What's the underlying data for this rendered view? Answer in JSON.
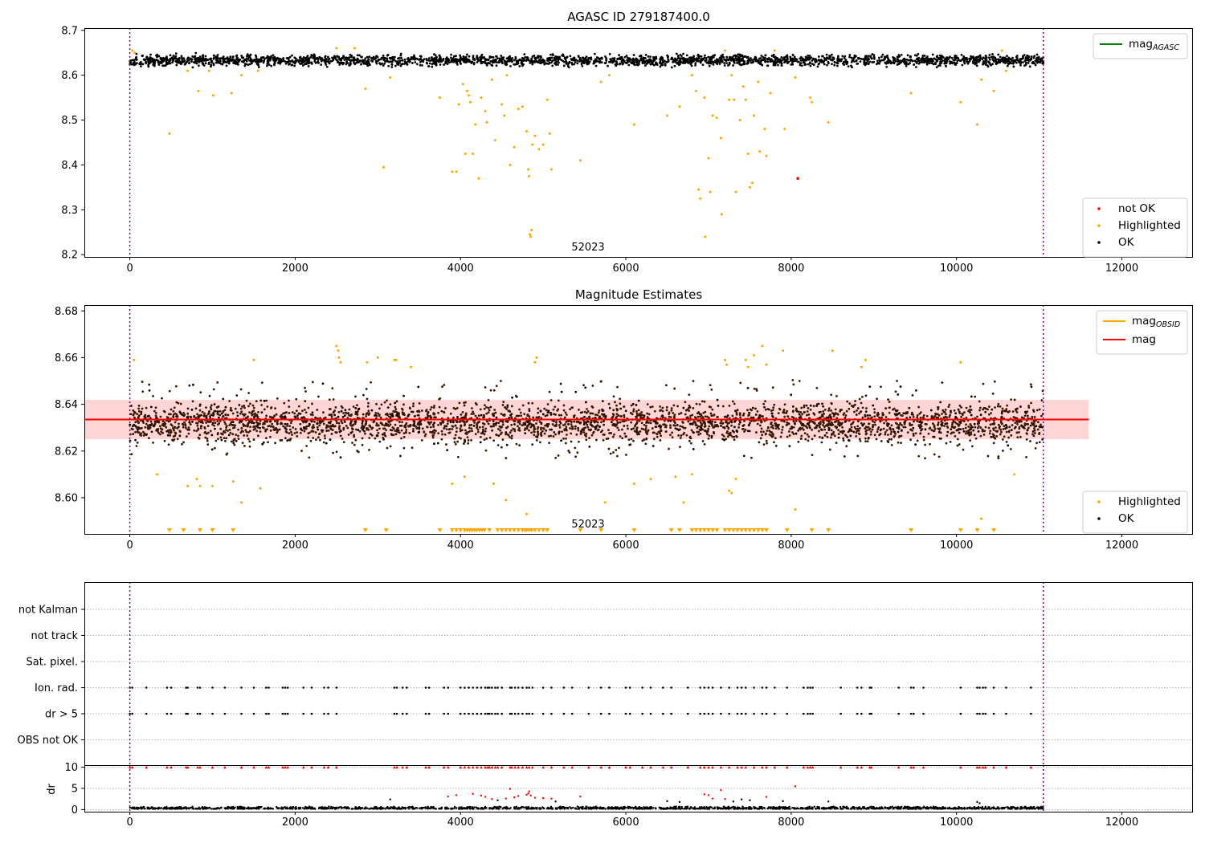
{
  "figure": {
    "source_label": "52023"
  },
  "chart_data": [
    {
      "id": "top",
      "type": "scatter",
      "title": "AGASC ID 279187400.0",
      "xlim": [
        -550,
        12850
      ],
      "ylim": [
        8.195,
        8.705
      ],
      "xticks": [
        0,
        2000,
        4000,
        6000,
        8000,
        10000,
        12000
      ],
      "yticks": [
        8.2,
        8.3,
        8.4,
        8.5,
        8.6,
        8.7
      ],
      "ytick_labels": [
        "8.2",
        "8.3",
        "8.4",
        "8.5",
        "8.6",
        "8.7"
      ],
      "vlines": [
        0,
        11050
      ],
      "annotation": "52023",
      "legend_upper": [
        {
          "label": "mag",
          "sub": "AGASC",
          "color": "#008000"
        }
      ],
      "legend_lower": [
        {
          "label": "not OK",
          "color": "#ff0000"
        },
        {
          "label": "Highlighted",
          "color": "#ffa500"
        },
        {
          "label": "OK",
          "color": "#000000"
        }
      ],
      "band": {
        "center": 8.633,
        "half_width": 0.012,
        "color": "#000000"
      },
      "not_ok_points": [
        [
          8080,
          8.37
        ]
      ],
      "highlighted_points": [
        [
          30,
          8.655
        ],
        [
          60,
          8.65
        ],
        [
          480,
          8.47
        ],
        [
          700,
          8.61
        ],
        [
          830,
          8.565
        ],
        [
          960,
          8.61
        ],
        [
          1010,
          8.555
        ],
        [
          1230,
          8.56
        ],
        [
          1350,
          8.6
        ],
        [
          1550,
          8.61
        ],
        [
          2500,
          8.66
        ],
        [
          2720,
          8.66
        ],
        [
          2850,
          8.57
        ],
        [
          3070,
          8.395
        ],
        [
          3150,
          8.595
        ],
        [
          3750,
          8.55
        ],
        [
          3900,
          8.385
        ],
        [
          3950,
          8.385
        ],
        [
          3980,
          8.535
        ],
        [
          4030,
          8.58
        ],
        [
          4060,
          8.425
        ],
        [
          4080,
          8.565
        ],
        [
          4100,
          8.555
        ],
        [
          4120,
          8.54
        ],
        [
          4150,
          8.425
        ],
        [
          4180,
          8.49
        ],
        [
          4220,
          8.37
        ],
        [
          4250,
          8.55
        ],
        [
          4300,
          8.52
        ],
        [
          4320,
          8.495
        ],
        [
          4380,
          8.59
        ],
        [
          4420,
          8.455
        ],
        [
          4500,
          8.535
        ],
        [
          4530,
          8.51
        ],
        [
          4560,
          8.6
        ],
        [
          4600,
          8.4
        ],
        [
          4650,
          8.44
        ],
        [
          4700,
          8.525
        ],
        [
          4750,
          8.53
        ],
        [
          4800,
          8.475
        ],
        [
          4820,
          8.39
        ],
        [
          4830,
          8.375
        ],
        [
          4840,
          8.245
        ],
        [
          4850,
          8.24
        ],
        [
          4860,
          8.255
        ],
        [
          4870,
          8.445
        ],
        [
          4900,
          8.465
        ],
        [
          4950,
          8.435
        ],
        [
          5000,
          8.445
        ],
        [
          5050,
          8.545
        ],
        [
          5080,
          8.47
        ],
        [
          5100,
          8.39
        ],
        [
          5450,
          8.41
        ],
        [
          5700,
          8.585
        ],
        [
          5800,
          8.6
        ],
        [
          6100,
          8.49
        ],
        [
          6500,
          8.51
        ],
        [
          6650,
          8.53
        ],
        [
          6800,
          8.6
        ],
        [
          6850,
          8.565
        ],
        [
          6880,
          8.345
        ],
        [
          6900,
          8.325
        ],
        [
          6950,
          8.55
        ],
        [
          6960,
          8.24
        ],
        [
          7000,
          8.415
        ],
        [
          7020,
          8.34
        ],
        [
          7050,
          8.51
        ],
        [
          7100,
          8.505
        ],
        [
          7150,
          8.46
        ],
        [
          7160,
          8.29
        ],
        [
          7200,
          8.655
        ],
        [
          7250,
          8.545
        ],
        [
          7280,
          8.6
        ],
        [
          7310,
          8.545
        ],
        [
          7330,
          8.34
        ],
        [
          7380,
          8.5
        ],
        [
          7420,
          8.575
        ],
        [
          7450,
          8.545
        ],
        [
          7480,
          8.425
        ],
        [
          7500,
          8.35
        ],
        [
          7530,
          8.36
        ],
        [
          7550,
          8.51
        ],
        [
          7600,
          8.585
        ],
        [
          7620,
          8.43
        ],
        [
          7680,
          8.48
        ],
        [
          7700,
          8.42
        ],
        [
          7750,
          8.56
        ],
        [
          7800,
          8.655
        ],
        [
          7920,
          8.48
        ],
        [
          8050,
          8.595
        ],
        [
          8230,
          8.55
        ],
        [
          8250,
          8.54
        ],
        [
          8450,
          8.495
        ],
        [
          9450,
          8.56
        ],
        [
          10050,
          8.54
        ],
        [
          10250,
          8.49
        ],
        [
          10300,
          8.59
        ],
        [
          10450,
          8.565
        ],
        [
          10550,
          8.655
        ],
        [
          10600,
          8.61
        ]
      ]
    },
    {
      "id": "middle",
      "type": "scatter",
      "title": "Magnitude Estimates",
      "xlim": [
        -550,
        12850
      ],
      "ylim": [
        8.5845,
        8.6825
      ],
      "xticks": [
        0,
        2000,
        4000,
        6000,
        8000,
        10000,
        12000
      ],
      "yticks": [
        8.6,
        8.62,
        8.64,
        8.66,
        8.68
      ],
      "ytick_labels": [
        "8.60",
        "8.62",
        "8.64",
        "8.66",
        "8.68"
      ],
      "vlines": [
        0,
        11050
      ],
      "annotation": "52023",
      "legend_upper": [
        {
          "label": "mag",
          "sub": "OBSID",
          "color": "#ffa500"
        },
        {
          "label": "mag",
          "sub": "",
          "color": "#ff0000"
        }
      ],
      "legend_lower": [
        {
          "label": "Highlighted",
          "color": "#ffa500"
        },
        {
          "label": "OK",
          "color": "#000000"
        }
      ],
      "mean_line": 8.6335,
      "shade": [
        8.6251,
        8.6419
      ],
      "shade_x": [
        -550,
        11600
      ],
      "band": {
        "center": 8.632,
        "half_width": 0.008,
        "color": "#3a1800"
      },
      "highlighted_points": [
        [
          50,
          8.659
        ],
        [
          330,
          8.61
        ],
        [
          700,
          8.605
        ],
        [
          810,
          8.608
        ],
        [
          850,
          8.605
        ],
        [
          1000,
          8.605
        ],
        [
          1250,
          8.607
        ],
        [
          1350,
          8.598
        ],
        [
          1500,
          8.659
        ],
        [
          1580,
          8.604
        ],
        [
          2500,
          8.665
        ],
        [
          2520,
          8.663
        ],
        [
          2530,
          8.66
        ],
        [
          2550,
          8.658
        ],
        [
          2870,
          8.658
        ],
        [
          3000,
          8.66
        ],
        [
          3200,
          8.659
        ],
        [
          3220,
          8.659
        ],
        [
          3400,
          8.656
        ],
        [
          3900,
          8.606
        ],
        [
          4050,
          8.609
        ],
        [
          4400,
          8.606
        ],
        [
          4550,
          8.599
        ],
        [
          4800,
          8.593
        ],
        [
          4900,
          8.658
        ],
        [
          4920,
          8.66
        ],
        [
          5750,
          8.598
        ],
        [
          6100,
          8.606
        ],
        [
          6300,
          8.608
        ],
        [
          6600,
          8.609
        ],
        [
          6700,
          8.598
        ],
        [
          6800,
          8.61
        ],
        [
          7200,
          8.659
        ],
        [
          7220,
          8.657
        ],
        [
          7250,
          8.603
        ],
        [
          7280,
          8.602
        ],
        [
          7330,
          8.608
        ],
        [
          7450,
          8.659
        ],
        [
          7480,
          8.656
        ],
        [
          7550,
          8.661
        ],
        [
          7650,
          8.665
        ],
        [
          7700,
          8.657
        ],
        [
          7900,
          8.663
        ],
        [
          8050,
          8.595
        ],
        [
          8500,
          8.663
        ],
        [
          8850,
          8.656
        ],
        [
          8900,
          8.659
        ],
        [
          10050,
          8.658
        ],
        [
          10300,
          8.591
        ],
        [
          10700,
          8.61
        ]
      ],
      "below_markers": [
        480,
        650,
        850,
        1000,
        1250,
        2850,
        3100,
        3750,
        3900,
        3950,
        4000,
        4050,
        4080,
        4110,
        4140,
        4170,
        4200,
        4230,
        4260,
        4290,
        4350,
        4450,
        4500,
        4550,
        4600,
        4650,
        4700,
        4750,
        4780,
        4800,
        4830,
        4860,
        4900,
        4950,
        5000,
        5050,
        5450,
        5700,
        6100,
        6550,
        6650,
        6800,
        6850,
        6900,
        6950,
        7000,
        7050,
        7100,
        7200,
        7250,
        7300,
        7350,
        7400,
        7450,
        7500,
        7550,
        7600,
        7650,
        7700,
        7950,
        8250,
        8450,
        9450,
        10050,
        10250,
        10450
      ]
    },
    {
      "id": "flags",
      "type": "scatter",
      "xlim": [
        -550,
        12850
      ],
      "categories": [
        "not Kalman",
        "not track",
        "Sat. pixel.",
        "Ion. rad.",
        "dr > 5",
        "OBS not OK"
      ],
      "vlines": [
        0,
        11050
      ],
      "flag_points": {
        "Ion. rad.": [
          0,
          30,
          200,
          450,
          500,
          680,
          700,
          820,
          850,
          1000,
          1150,
          1350,
          1500,
          1650,
          1680,
          1850,
          1880,
          1910,
          2100,
          2200,
          2350,
          2400,
          2500,
          3200,
          3230,
          3300,
          3350,
          3580,
          3620,
          3800,
          3850,
          4000,
          4050,
          4100,
          4150,
          4200,
          4250,
          4300,
          4330,
          4350,
          4380,
          4420,
          4450,
          4500,
          4600,
          4620,
          4660,
          4700,
          4750,
          4800,
          4830,
          4870,
          5000,
          5100,
          5250,
          5350,
          5550,
          5700,
          5800,
          6000,
          6050,
          6200,
          6300,
          6450,
          6550,
          6750,
          6900,
          6950,
          7000,
          7050,
          7150,
          7250,
          7350,
          7400,
          7450,
          7550,
          7650,
          7700,
          7800,
          7950,
          8150,
          8200,
          8230,
          8260,
          8600,
          8800,
          8850,
          8950,
          8970,
          9300,
          9450,
          9480,
          9600,
          10050,
          10250,
          10280,
          10320,
          10350,
          10450,
          10600,
          10900
        ],
        "dr > 5": [
          0,
          30,
          200,
          450,
          500,
          680,
          700,
          820,
          850,
          1000,
          1150,
          1350,
          1500,
          1650,
          1680,
          1850,
          1880,
          1910,
          2100,
          2200,
          2350,
          2400,
          2500,
          3200,
          3230,
          3300,
          3350,
          3580,
          3620,
          3800,
          3850,
          4000,
          4050,
          4100,
          4150,
          4200,
          4250,
          4300,
          4330,
          4350,
          4380,
          4420,
          4450,
          4500,
          4600,
          4620,
          4660,
          4700,
          4750,
          4800,
          4830,
          4870,
          5000,
          5100,
          5250,
          5350,
          5550,
          5700,
          5800,
          6000,
          6050,
          6200,
          6300,
          6450,
          6550,
          6750,
          6900,
          6950,
          7000,
          7050,
          7150,
          7250,
          7350,
          7400,
          7450,
          7550,
          7650,
          7700,
          7800,
          7950,
          8150,
          8200,
          8230,
          8260,
          8600,
          8800,
          8850,
          8950,
          8970,
          9300,
          9450,
          9480,
          9600,
          10050,
          10250,
          10280,
          10320,
          10350,
          10450,
          10600,
          10900
        ]
      }
    },
    {
      "id": "dr",
      "type": "scatter",
      "ylabel": "dr",
      "xlim": [
        -550,
        12850
      ],
      "ylim": [
        -0.5,
        10.5
      ],
      "xticks": [
        0,
        2000,
        4000,
        6000,
        8000,
        10000,
        12000
      ],
      "yticks": [
        0,
        5,
        10
      ],
      "ytick_labels": [
        "0",
        "5",
        "10"
      ],
      "vlines": [
        0,
        11050
      ],
      "clip_value": 10,
      "clip_markers": [
        0,
        30,
        200,
        450,
        500,
        680,
        700,
        820,
        850,
        1000,
        1150,
        1350,
        1500,
        1650,
        1680,
        1850,
        1880,
        1910,
        2100,
        2200,
        2350,
        2400,
        2500,
        3200,
        3230,
        3300,
        3350,
        3580,
        3620,
        3800,
        3850,
        4000,
        4050,
        4100,
        4150,
        4200,
        4250,
        4300,
        4330,
        4350,
        4380,
        4420,
        4450,
        4500,
        4600,
        4620,
        4660,
        4700,
        4750,
        4800,
        4830,
        4870,
        5000,
        5100,
        5250,
        5350,
        5550,
        5700,
        5800,
        6000,
        6050,
        6200,
        6300,
        6450,
        6550,
        6750,
        6900,
        6950,
        7000,
        7050,
        7150,
        7250,
        7350,
        7400,
        7450,
        7550,
        7650,
        7700,
        7800,
        7950,
        8150,
        8200,
        8230,
        8260,
        8600,
        8800,
        8850,
        8950,
        8970,
        9300,
        9450,
        9480,
        9600,
        10050,
        10250,
        10280,
        10320,
        10350,
        10450,
        10600,
        10900
      ],
      "red_points": [
        [
          3850,
          3.1
        ],
        [
          3950,
          3.4
        ],
        [
          4150,
          3.7
        ],
        [
          4250,
          3.3
        ],
        [
          4300,
          3.0
        ],
        [
          4380,
          2.5
        ],
        [
          4550,
          2.6
        ],
        [
          4600,
          4.9
        ],
        [
          4650,
          2.9
        ],
        [
          4700,
          3.2
        ],
        [
          4800,
          3.5
        ],
        [
          4820,
          3.8
        ],
        [
          4830,
          4.3
        ],
        [
          4850,
          3.3
        ],
        [
          4900,
          2.8
        ],
        [
          5000,
          2.7
        ],
        [
          5100,
          2.6
        ],
        [
          5450,
          3.1
        ],
        [
          6950,
          3.6
        ],
        [
          7000,
          3.4
        ],
        [
          7050,
          2.6
        ],
        [
          7150,
          4.6
        ],
        [
          7200,
          2.5
        ],
        [
          7700,
          3.0
        ],
        [
          8050,
          5.5
        ]
      ],
      "black_points": [
        [
          3150,
          2.4
        ],
        [
          4450,
          2.2
        ],
        [
          5150,
          1.9
        ],
        [
          6500,
          2.0
        ],
        [
          6650,
          1.8
        ],
        [
          7300,
          1.9
        ],
        [
          7400,
          2.4
        ],
        [
          7500,
          2.2
        ],
        [
          7900,
          2.0
        ],
        [
          8450,
          1.9
        ],
        [
          10250,
          1.8
        ],
        [
          10280,
          1.5
        ]
      ]
    }
  ]
}
